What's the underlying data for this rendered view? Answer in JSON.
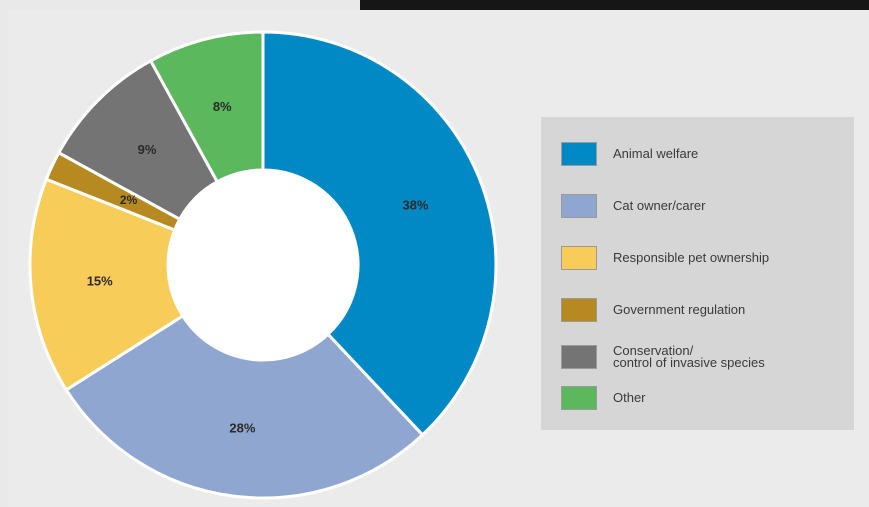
{
  "chart_data": {
    "type": "pie",
    "donut": true,
    "categories": [
      "Animal welfare",
      "Cat owner/carer",
      "Responsible pet ownership",
      "Government regulation",
      "Conservation/\ncontrol of invasive species",
      "Other"
    ],
    "values": [
      38,
      28,
      15,
      2,
      9,
      8
    ],
    "labels": [
      "38%",
      "28%",
      "15%",
      "2%",
      "9%",
      "8%"
    ],
    "colors": [
      "#0089c4",
      "#8ea6d0",
      "#f8cc58",
      "#b68a21",
      "#747474",
      "#5cb85c"
    ],
    "legend_position": "right"
  }
}
